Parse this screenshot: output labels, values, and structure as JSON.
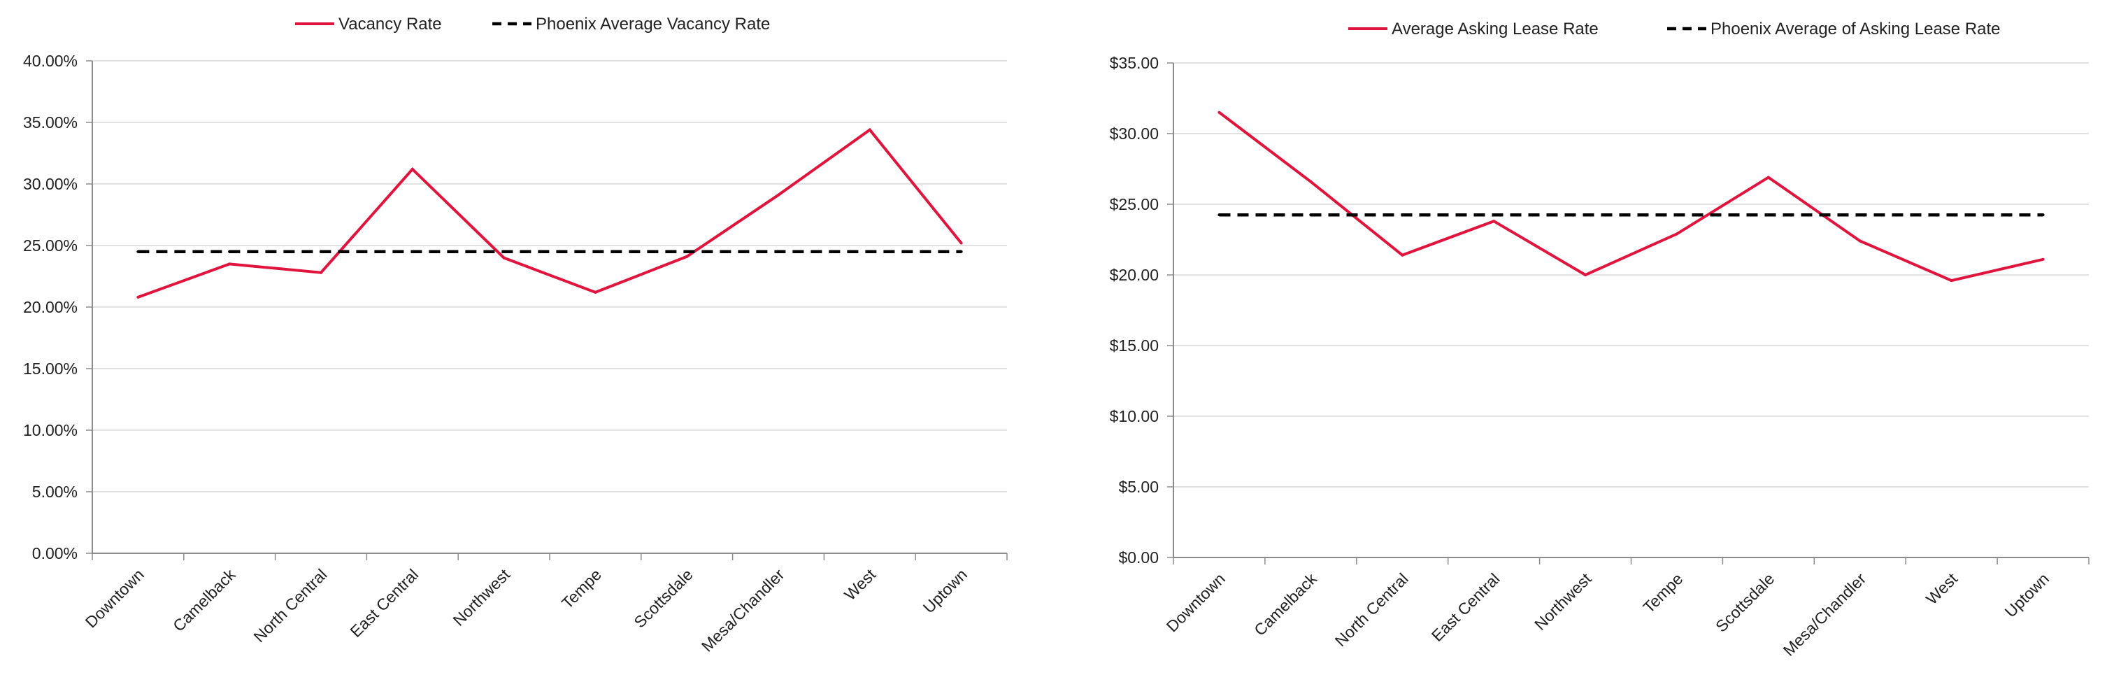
{
  "colors": {
    "series_red": "#e0143c",
    "series_dash": "#000000",
    "grid": "#d9d9d9",
    "axis": "#8c8c8c"
  },
  "chart_data": [
    {
      "type": "line",
      "categories": [
        "Downtown",
        "Camelback",
        "North Central",
        "East Central",
        "Northwest",
        "Tempe",
        "Scottsdale",
        "Mesa/Chandler",
        "West",
        "Uptown"
      ],
      "series": [
        {
          "name": "Vacancy Rate",
          "style": "solid",
          "values": [
            20.8,
            23.5,
            22.8,
            31.2,
            24.0,
            21.2,
            24.1,
            29.1,
            34.4,
            25.2
          ]
        },
        {
          "name": "Phoenix Average Vacancy Rate",
          "style": "dashed",
          "values": [
            24.5,
            24.5,
            24.5,
            24.5,
            24.5,
            24.5,
            24.5,
            24.5,
            24.5,
            24.5
          ]
        }
      ],
      "ylim": [
        0,
        40
      ],
      "yticks": [
        "0.00%",
        "5.00%",
        "10.00%",
        "15.00%",
        "20.00%",
        "25.00%",
        "30.00%",
        "35.00%",
        "40.00%"
      ],
      "legend_position": "top",
      "grid": true
    },
    {
      "type": "line",
      "categories": [
        "Downtown",
        "Camelback",
        "North Central",
        "East Central",
        "Northwest",
        "Tempe",
        "Scottsdale",
        "Mesa/Chandler",
        "West",
        "Uptown"
      ],
      "series": [
        {
          "name": "Average Asking Lease Rate",
          "style": "solid",
          "values": [
            31.5,
            26.6,
            21.4,
            23.8,
            20.0,
            22.9,
            26.9,
            22.4,
            19.6,
            21.1
          ]
        },
        {
          "name": "Phoenix Average of Asking Lease Rate",
          "style": "dashed",
          "values": [
            24.25,
            24.25,
            24.25,
            24.25,
            24.25,
            24.25,
            24.25,
            24.25,
            24.25,
            24.25
          ]
        }
      ],
      "ylim": [
        0,
        35
      ],
      "yticks": [
        "$0.00",
        "$5.00",
        "$10.00",
        "$15.00",
        "$20.00",
        "$25.00",
        "$30.00",
        "$35.00"
      ],
      "legend_position": "top",
      "grid": true
    }
  ]
}
